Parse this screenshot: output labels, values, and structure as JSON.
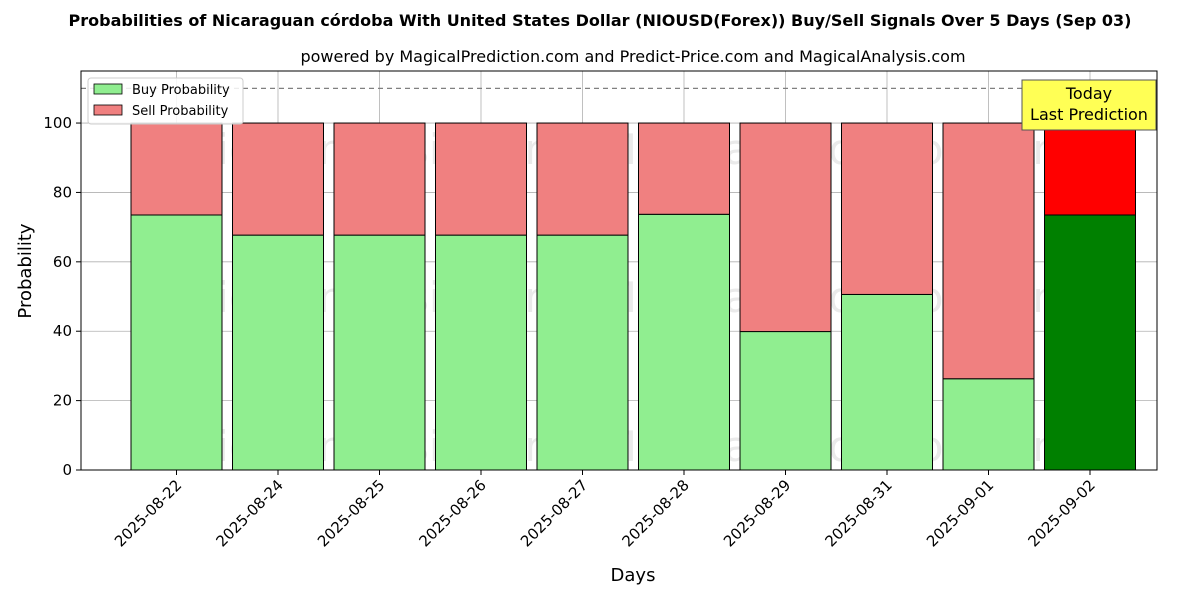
{
  "chart_data": {
    "type": "bar",
    "stacked": true,
    "title": "Probabilities of Nicaraguan córdoba With United States Dollar (NIOUSD(Forex)) Buy/Sell Signals Over 5 Days (Sep 03)",
    "subtitle": "powered by MagicalPrediction.com and Predict-Price.com and MagicalAnalysis.com",
    "xlabel": "Days",
    "ylabel": "Probability",
    "ylim": [
      0,
      115
    ],
    "yticks": [
      0,
      20,
      40,
      60,
      80,
      100
    ],
    "grid": true,
    "legend_position": "top-left",
    "reference_line": 110,
    "categories": [
      "2025-08-22",
      "2025-08-24",
      "2025-08-25",
      "2025-08-26",
      "2025-08-27",
      "2025-08-28",
      "2025-08-29",
      "2025-08-31",
      "2025-09-01",
      "2025-09-02"
    ],
    "series": [
      {
        "name": "Buy Probability",
        "color": "#90EE90",
        "highlight_color": "#008000",
        "values": [
          73.5,
          67.7,
          67.7,
          67.7,
          67.7,
          73.7,
          39.9,
          50.6,
          26.3,
          73.5
        ]
      },
      {
        "name": "Sell Probability",
        "color": "#F08080",
        "highlight_color": "#FF0000",
        "values": [
          26.5,
          32.3,
          32.3,
          32.3,
          32.3,
          26.3,
          60.1,
          49.4,
          73.7,
          26.5
        ]
      }
    ],
    "highlight_index": 9,
    "annotation": {
      "line1": "Today",
      "line2": "Last Prediction",
      "color": "#FFFF55"
    },
    "watermarks": [
      "MagicalAnalysis.com",
      "MagicalPrediction.com"
    ]
  }
}
